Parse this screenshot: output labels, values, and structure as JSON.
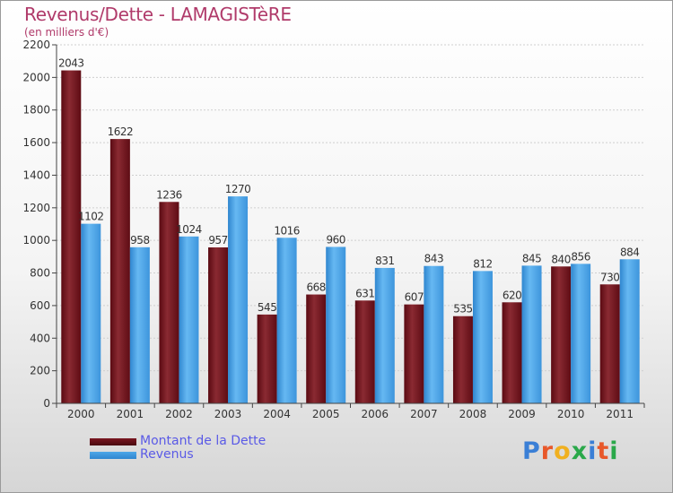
{
  "header": {
    "title": "Revenus/Dette - LAMAGISTèRE",
    "subtitle": "(en milliers d'€)"
  },
  "chart_data": {
    "type": "bar",
    "title": "Revenus/Dette - LAMAGISTèRE",
    "ylabel": "(en milliers d'€)",
    "ylim": [
      0,
      2200
    ],
    "yticks": [
      0,
      200,
      400,
      600,
      800,
      1000,
      1200,
      1400,
      1600,
      1800,
      2000,
      2200
    ],
    "grid": true,
    "legend_position": "bottom-left",
    "categories": [
      "2000",
      "2001",
      "2002",
      "2003",
      "2004",
      "2005",
      "2006",
      "2007",
      "2008",
      "2009",
      "2010",
      "2011"
    ],
    "series": [
      {
        "name": "Montant de la Dette",
        "color": "#7a1620",
        "values": [
          2043,
          1622,
          1236,
          957,
          545,
          668,
          631,
          607,
          535,
          620,
          840,
          730
        ]
      },
      {
        "name": "Revenus",
        "color": "#4ea7e8",
        "values": [
          1102,
          958,
          1024,
          1270,
          1016,
          960,
          831,
          843,
          812,
          845,
          856,
          884
        ]
      }
    ]
  },
  "logo": {
    "letters": [
      "P",
      "r",
      "o",
      "x",
      "i",
      "t",
      "i"
    ],
    "colors": [
      "#3a7fd6",
      "#e8582a",
      "#f0b020",
      "#2aa84a",
      "#3a7fd6",
      "#e8582a",
      "#2aa84a"
    ]
  }
}
